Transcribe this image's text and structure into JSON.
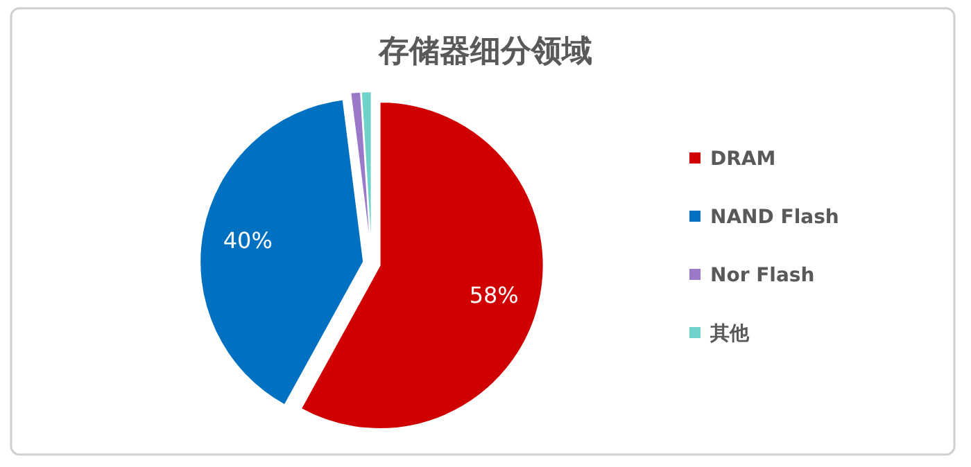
{
  "chart_data": {
    "type": "pie",
    "title": "存储器细分领域",
    "categories": [
      "DRAM",
      "NAND Flash",
      "Nor Flash",
      "其他"
    ],
    "values": [
      58,
      40,
      1,
      1
    ],
    "value_labels": [
      "58%",
      "40%",
      null,
      null
    ],
    "colors": [
      "#d00000",
      "#0070c0",
      "#9a7ac8",
      "#6fd3c9"
    ],
    "legend": "right"
  }
}
